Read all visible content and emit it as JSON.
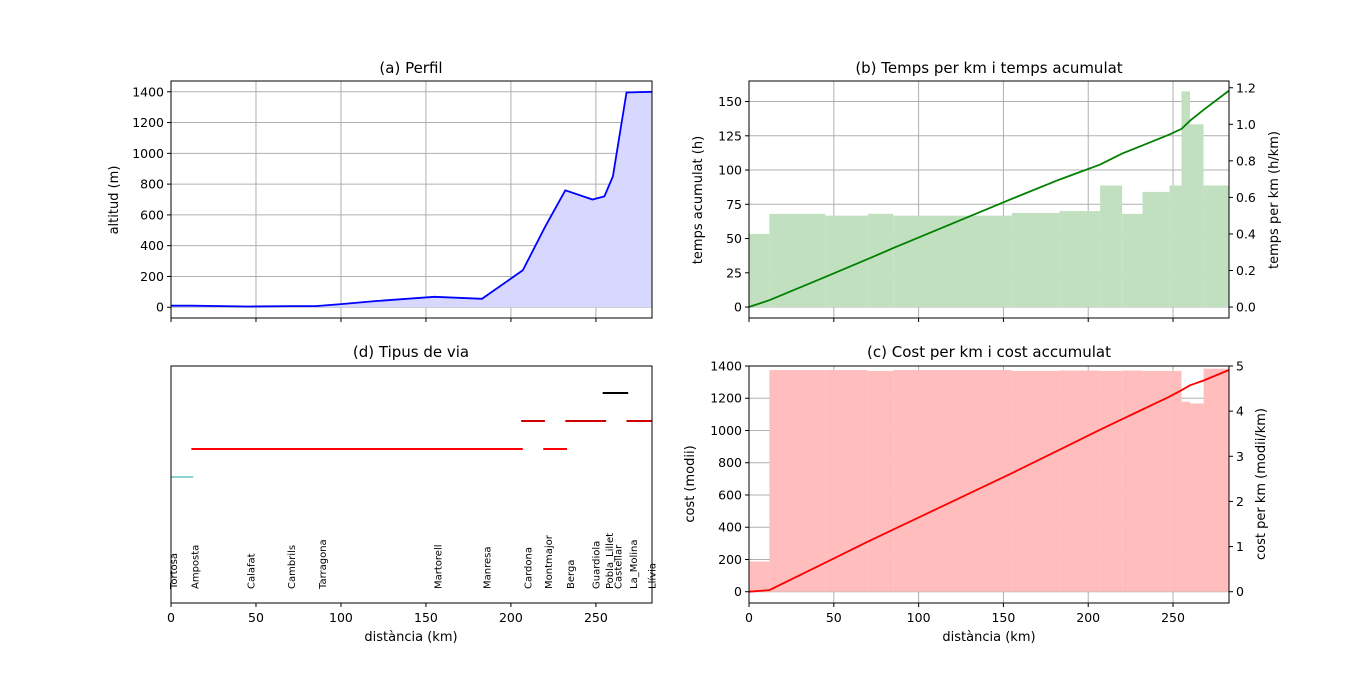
{
  "chart_data": [
    {
      "id": "a",
      "type": "area",
      "title": "(a) Perfil",
      "xlabel": "",
      "ylabel": "altitud (m)",
      "xlim": [
        0,
        283
      ],
      "ylim": [
        -70,
        1470
      ],
      "yticks": [
        0,
        200,
        400,
        600,
        800,
        1000,
        1200,
        1400
      ],
      "xticks": [
        0,
        50,
        100,
        150,
        200,
        250
      ],
      "grid": true,
      "colors": {
        "line": "#0000ff",
        "fill": "#d8d8ff"
      },
      "x": [
        0,
        12,
        45,
        70,
        85,
        100,
        120,
        155,
        183,
        207,
        220,
        232,
        248,
        255,
        260,
        268,
        283
      ],
      "y": [
        10,
        10,
        5,
        7,
        7,
        20,
        40,
        68,
        55,
        240,
        520,
        760,
        700,
        720,
        850,
        1395,
        1400
      ]
    },
    {
      "id": "b",
      "type": "bar",
      "title": "(b) Temps per km i temps acumulat",
      "xlabel": "",
      "ylabel": "temps acumulat (h)",
      "ylabel_right": "temps per km (h/km)",
      "xlim": [
        0,
        283
      ],
      "ylim": [
        -8,
        165
      ],
      "ylim_right": [
        -0.06,
        1.237
      ],
      "yticks": [
        0,
        25,
        50,
        75,
        100,
        125,
        150
      ],
      "yticks_right": [
        "0.0",
        "0.2",
        "0.4",
        "0.6",
        "0.8",
        "1.0",
        "1.2"
      ],
      "xticks": [
        0,
        50,
        100,
        150,
        200,
        250
      ],
      "grid": true,
      "colors": {
        "line": "#008000",
        "bar": "#c0e0c0"
      },
      "bars": {
        "edges": [
          0,
          12,
          45,
          70,
          85,
          155,
          183,
          207,
          220,
          232,
          248,
          255,
          260,
          268,
          283
        ],
        "values": [
          0.4,
          0.51,
          0.5,
          0.51,
          0.5,
          0.515,
          0.525,
          0.665,
          0.51,
          0.63,
          0.665,
          1.18,
          1.0,
          0.665
        ]
      },
      "series": [
        {
          "x": [
            0,
            12,
            45,
            70,
            85,
            155,
            183,
            207,
            220,
            232,
            248,
            255,
            260,
            268,
            283
          ],
          "y": [
            0,
            5,
            22,
            35,
            43,
            79,
            93,
            104,
            112,
            118,
            126,
            130,
            136,
            144,
            158
          ]
        }
      ]
    },
    {
      "id": "d",
      "type": "line",
      "title": "(d) Tipus de via",
      "xlabel": "distància (km)",
      "ylabel": "",
      "xlim": [
        0,
        283
      ],
      "xticks": [
        0,
        50,
        100,
        150,
        200,
        250
      ],
      "grid": false,
      "segments": [
        {
          "x0": 0,
          "x1": 13,
          "level": 1,
          "color": "#8fd0d0"
        },
        {
          "x0": 12,
          "x1": 207,
          "level": 2,
          "color": "#ff0000"
        },
        {
          "x0": 219,
          "x1": 233,
          "level": 2,
          "color": "#ff0000"
        },
        {
          "x0": 206,
          "x1": 220,
          "level": 3,
          "color": "#d00000"
        },
        {
          "x0": 232,
          "x1": 256,
          "level": 3,
          "color": "#d00000"
        },
        {
          "x0": 268,
          "x1": 283,
          "level": 3,
          "color": "#d00000"
        },
        {
          "x0": 254,
          "x1": 269,
          "level": 4,
          "color": "#000000"
        }
      ],
      "towns": [
        {
          "name": "Tortosa",
          "x": 1.5
        },
        {
          "name": "Amposta",
          "x": 14
        },
        {
          "name": "Calafat",
          "x": 47
        },
        {
          "name": "Cambrils",
          "x": 71
        },
        {
          "name": "Tarragona",
          "x": 89
        },
        {
          "name": "Martorell",
          "x": 157
        },
        {
          "name": "Manresa",
          "x": 186
        },
        {
          "name": "Cardona",
          "x": 210
        },
        {
          "name": "Montmajor",
          "x": 222
        },
        {
          "name": "Berga",
          "x": 235
        },
        {
          "name": "Guardiola",
          "x": 250
        },
        {
          "name": "Pobla_Lillet",
          "x": 258
        },
        {
          "name": "Castellar",
          "x": 263
        },
        {
          "name": "La_Molina",
          "x": 272
        },
        {
          "name": "Llívia",
          "x": 283
        }
      ]
    },
    {
      "id": "c",
      "type": "bar",
      "title": "(c) Cost per km i cost accumulat",
      "xlabel": "distància (km)",
      "ylabel": "cost (modii)",
      "ylabel_right": "cost per km (modii/km)",
      "xlim": [
        0,
        283
      ],
      "ylim": [
        -70,
        1400
      ],
      "ylim_right": [
        -0.25,
        5.0
      ],
      "yticks": [
        0,
        200,
        400,
        600,
        800,
        1000,
        1200,
        1400
      ],
      "yticks_right": [
        "0",
        "1",
        "2",
        "3",
        "4",
        "5"
      ],
      "xticks": [
        0,
        50,
        100,
        150,
        200,
        250
      ],
      "grid": true,
      "colors": {
        "line": "#ff0000",
        "bar": "#ffbdbd"
      },
      "bars": {
        "edges": [
          0,
          12,
          45,
          70,
          85,
          155,
          183,
          207,
          220,
          232,
          248,
          255,
          260,
          268,
          283
        ],
        "values": [
          0.67,
          4.91,
          4.91,
          4.89,
          4.91,
          4.89,
          4.9,
          4.89,
          4.9,
          4.89,
          4.89,
          4.21,
          4.17,
          4.94
        ]
      },
      "series": [
        {
          "x": [
            0,
            12,
            45,
            70,
            85,
            155,
            183,
            207,
            220,
            232,
            248,
            255,
            260,
            268,
            283
          ],
          "y": [
            0,
            10,
            180,
            310,
            385,
            735,
            880,
            1005,
            1070,
            1130,
            1210,
            1250,
            1280,
            1310,
            1375
          ]
        }
      ]
    }
  ]
}
